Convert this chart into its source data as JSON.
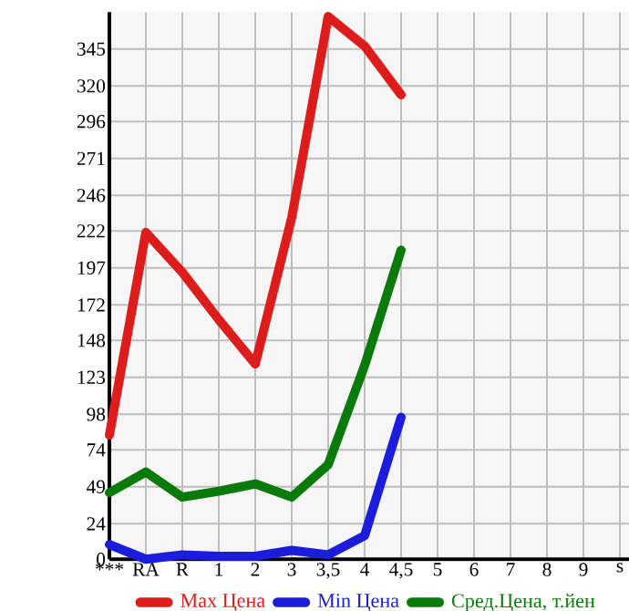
{
  "chart_data": {
    "type": "line",
    "categories": [
      "***",
      "RA",
      "R",
      "1",
      "2",
      "3",
      "3,5",
      "4",
      "4,5",
      "5",
      "6",
      "7",
      "8",
      "9",
      "s"
    ],
    "series": [
      {
        "name": "Max Цена",
        "color": "#dd1c1c",
        "values": [
          84,
          221,
          194,
          162,
          132,
          231,
          367,
          347,
          314,
          null,
          null,
          null,
          null,
          null,
          null
        ]
      },
      {
        "name": "Min Цена",
        "color": "#1c1cdd",
        "values": [
          10,
          0,
          3,
          2,
          2,
          6,
          3,
          16,
          96,
          null,
          null,
          null,
          null,
          null,
          null
        ]
      },
      {
        "name": "Сред.Цена, т.йен",
        "color": "#0a7a0a",
        "values": [
          45,
          59,
          42,
          46,
          51,
          42,
          64,
          131,
          209,
          null,
          null,
          null,
          null,
          null,
          null
        ]
      }
    ],
    "ylim": [
      0,
      370
    ],
    "yticks": [
      0,
      24,
      49,
      74,
      98,
      123,
      148,
      172,
      197,
      222,
      246,
      271,
      296,
      320,
      345
    ],
    "grid": true,
    "legend": "bottom",
    "marker": "none",
    "line_style": "solid"
  }
}
